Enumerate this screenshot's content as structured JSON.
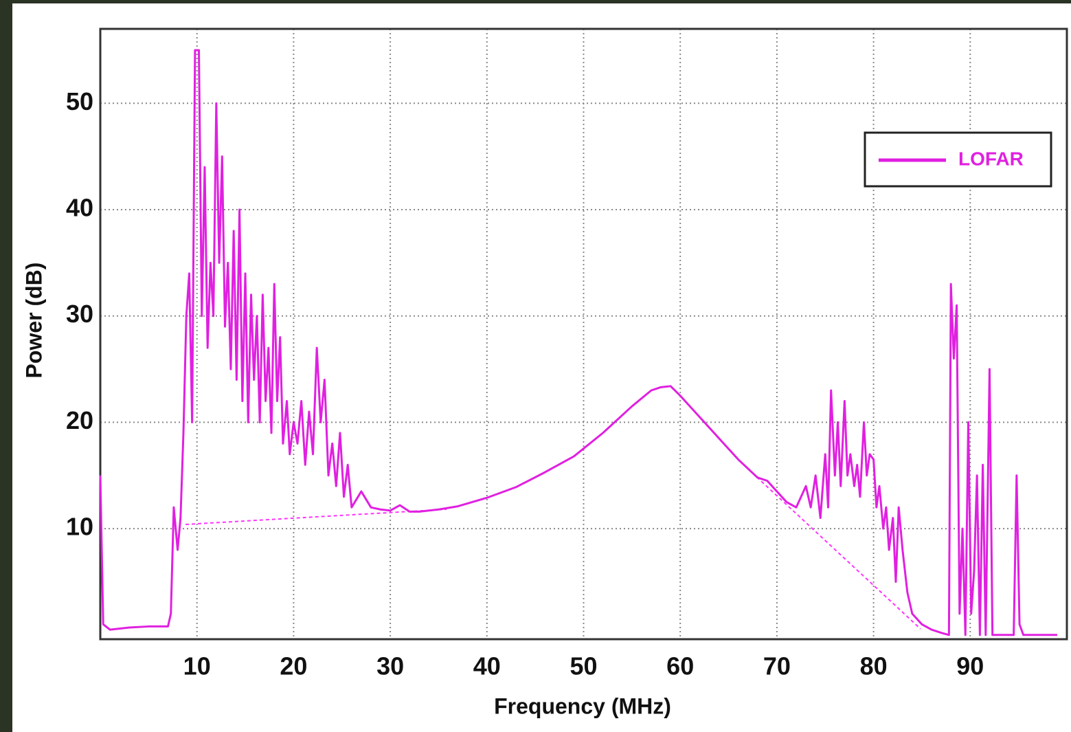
{
  "chart_data": {
    "type": "line",
    "x_label": "Frequency (MHz)",
    "y_label": "Power (dB)",
    "xlim": [
      0,
      100
    ],
    "ylim": [
      -0.4,
      57
    ],
    "xticks": [
      10,
      20,
      30,
      40,
      50,
      60,
      70,
      80,
      90
    ],
    "yticks": [
      10,
      20,
      30,
      40,
      50
    ],
    "grid": true,
    "legend": "upper right",
    "x": [
      0,
      0.3,
      1,
      3,
      5,
      7,
      7.3,
      7.6,
      8,
      8.3,
      8.6,
      8.9,
      9.2,
      9.5,
      9.8,
      10.2,
      10.5,
      10.8,
      11.1,
      11.4,
      11.7,
      12,
      12.3,
      12.6,
      12.9,
      13.2,
      13.5,
      13.8,
      14.1,
      14.4,
      14.7,
      15,
      15.3,
      15.6,
      15.9,
      16.2,
      16.5,
      16.8,
      17.1,
      17.4,
      17.7,
      18,
      18.3,
      18.6,
      18.9,
      19.3,
      19.6,
      20,
      20.4,
      20.8,
      21.2,
      21.6,
      22,
      22.4,
      22.8,
      23.2,
      23.6,
      24,
      24.4,
      24.8,
      25.2,
      25.6,
      26,
      27,
      28,
      29,
      30,
      31,
      32,
      33,
      35,
      37,
      40,
      43,
      46,
      49,
      52,
      55,
      57,
      58,
      59,
      60,
      62,
      64,
      66,
      68,
      69,
      70,
      71,
      72,
      72.5,
      73,
      73.5,
      74,
      74.5,
      75,
      75.3,
      75.6,
      76,
      76.3,
      76.6,
      77,
      77.3,
      77.6,
      78,
      78.3,
      78.6,
      79,
      79.3,
      79.6,
      80,
      80.3,
      80.6,
      81,
      81.3,
      81.6,
      82,
      82.3,
      82.6,
      83,
      83.5,
      84,
      85,
      86,
      87,
      87.8,
      88,
      88.3,
      88.6,
      88.9,
      89.2,
      89.5,
      89.8,
      90.1,
      90.4,
      90.7,
      91,
      91.3,
      91.6,
      92,
      92.3,
      93,
      94.5,
      94.8,
      95.1,
      95.5,
      99
    ],
    "series": [
      {
        "name": "LOFAR",
        "color": "#e020e0",
        "values": [
          15,
          1,
          0.5,
          0.7,
          0.8,
          0.8,
          2,
          12,
          8,
          11,
          19,
          30,
          34,
          20,
          55,
          55,
          30,
          44,
          27,
          35,
          30,
          50,
          35,
          45,
          29,
          35,
          25,
          38,
          24,
          40,
          22,
          34,
          20,
          32,
          24,
          30,
          20,
          32,
          22,
          27,
          19,
          33,
          22,
          28,
          18,
          22,
          17,
          20,
          18,
          22,
          16,
          21,
          17,
          27,
          20,
          24,
          15,
          18,
          14,
          19,
          13,
          16,
          12,
          13.5,
          12,
          11.8,
          11.7,
          12.2,
          11.6,
          11.6,
          11.8,
          12.1,
          12.9,
          13.9,
          15.3,
          16.8,
          19,
          21.5,
          23,
          23.3,
          23.4,
          22.5,
          20.5,
          18.5,
          16.5,
          14.8,
          14.5,
          13.5,
          12.5,
          12,
          13,
          14,
          12,
          15,
          11,
          17,
          12,
          23,
          15,
          20,
          14,
          22,
          15,
          17,
          14,
          16,
          13,
          20,
          15,
          17,
          16.5,
          12,
          14,
          10,
          12,
          8,
          11,
          5,
          12,
          8,
          4,
          2,
          1,
          0.5,
          0.2,
          0,
          33,
          26,
          31,
          2,
          10,
          0,
          20,
          2,
          6,
          15,
          0,
          16,
          0,
          25,
          0,
          0,
          0,
          15,
          1,
          0,
          0
        ]
      }
    ]
  }
}
